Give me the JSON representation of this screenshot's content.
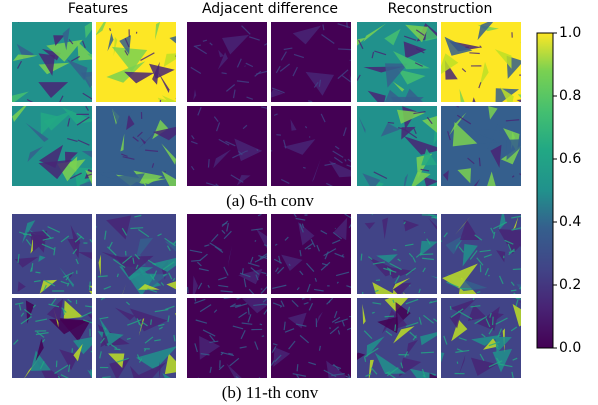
{
  "column_titles": [
    "Features",
    "Adjacent difference",
    "Reconstruction"
  ],
  "rows": [
    {
      "caption": "(a) 6-th conv"
    },
    {
      "caption": "(b) 11-th conv"
    }
  ],
  "colorbar": {
    "ylim": [
      0,
      1
    ],
    "yticks": [
      {
        "value": 0,
        "label": "0.0"
      },
      0.2,
      0.4,
      0.6,
      0.8,
      {
        "value": 1,
        "label": "1.0"
      }
    ]
  }
}
